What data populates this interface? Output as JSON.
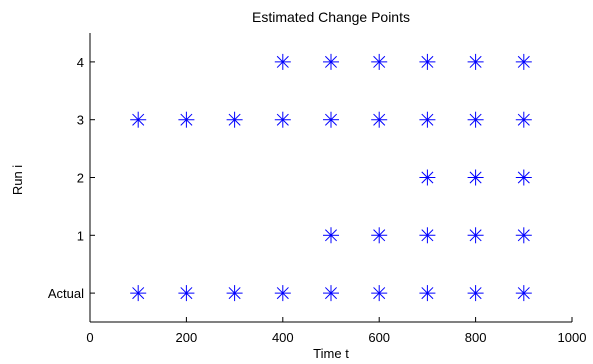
{
  "chart_data": {
    "type": "scatter",
    "title": "Estimated Change Points",
    "xlabel": "Time t",
    "ylabel": "Run i",
    "xlim": [
      0,
      1000
    ],
    "ylim": [
      -0.5,
      4.5
    ],
    "x_ticks": [
      0,
      200,
      400,
      600,
      800,
      1000
    ],
    "y_ticks": [
      {
        "value": 0,
        "label": "Actual"
      },
      {
        "value": 1,
        "label": "1"
      },
      {
        "value": 2,
        "label": "2"
      },
      {
        "value": 3,
        "label": "3"
      },
      {
        "value": 4,
        "label": "4"
      }
    ],
    "grid": false,
    "marker": "asterisk",
    "marker_color": "#0000ff",
    "points": [
      {
        "x": 100,
        "y": 0
      },
      {
        "x": 200,
        "y": 0
      },
      {
        "x": 300,
        "y": 0
      },
      {
        "x": 400,
        "y": 0
      },
      {
        "x": 500,
        "y": 0
      },
      {
        "x": 600,
        "y": 0
      },
      {
        "x": 700,
        "y": 0
      },
      {
        "x": 800,
        "y": 0
      },
      {
        "x": 900,
        "y": 0
      },
      {
        "x": 500,
        "y": 1
      },
      {
        "x": 600,
        "y": 1
      },
      {
        "x": 700,
        "y": 1
      },
      {
        "x": 800,
        "y": 1
      },
      {
        "x": 900,
        "y": 1
      },
      {
        "x": 700,
        "y": 2
      },
      {
        "x": 800,
        "y": 2
      },
      {
        "x": 900,
        "y": 2
      },
      {
        "x": 100,
        "y": 3
      },
      {
        "x": 200,
        "y": 3
      },
      {
        "x": 300,
        "y": 3
      },
      {
        "x": 400,
        "y": 3
      },
      {
        "x": 500,
        "y": 3
      },
      {
        "x": 600,
        "y": 3
      },
      {
        "x": 700,
        "y": 3
      },
      {
        "x": 800,
        "y": 3
      },
      {
        "x": 900,
        "y": 3
      },
      {
        "x": 400,
        "y": 4
      },
      {
        "x": 500,
        "y": 4
      },
      {
        "x": 600,
        "y": 4
      },
      {
        "x": 700,
        "y": 4
      },
      {
        "x": 800,
        "y": 4
      },
      {
        "x": 900,
        "y": 4
      }
    ]
  }
}
